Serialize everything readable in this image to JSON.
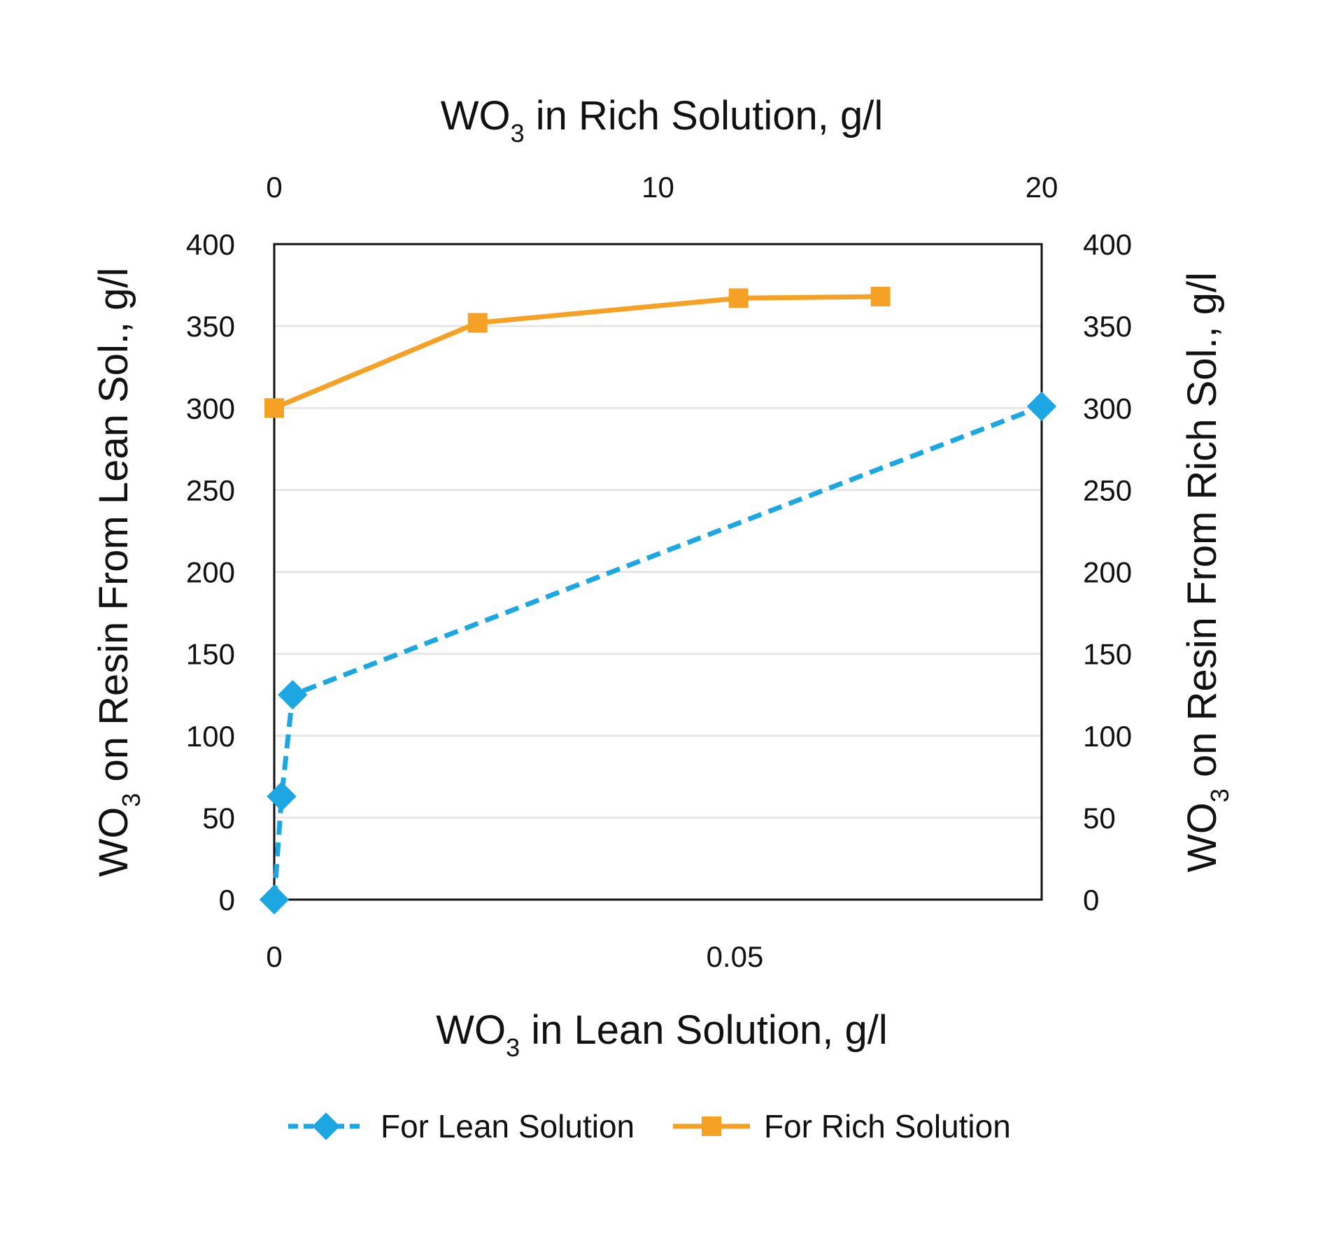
{
  "chart_data": {
    "type": "line",
    "x_bottom": {
      "label_pre": "WO",
      "label_sub": "3",
      "label_post": " in Lean Solution, g/l",
      "range": [
        0,
        0.0833
      ],
      "ticks": [
        0,
        0.05
      ],
      "tick_labels": [
        "0",
        "0.05"
      ]
    },
    "x_top": {
      "label_pre": "WO",
      "label_sub": "3",
      "label_post": " in Rich Solution, g/l",
      "range": [
        0,
        20
      ],
      "ticks": [
        0,
        10,
        20
      ],
      "tick_labels": [
        "0",
        "10",
        "20"
      ]
    },
    "y_left": {
      "label_pre": "WO",
      "label_sub": "3",
      "label_post": " on Resin From Lean Sol., g/l",
      "range": [
        0,
        400
      ],
      "ticks": [
        0,
        50,
        100,
        150,
        200,
        250,
        300,
        350,
        400
      ],
      "tick_labels": [
        "0",
        "50",
        "100",
        "150",
        "200",
        "250",
        "300",
        "350",
        "400"
      ]
    },
    "y_right": {
      "label_pre": "WO",
      "label_sub": "3",
      "label_post": " on Resin From Rich Sol., g/l",
      "range": [
        0,
        400
      ],
      "ticks": [
        0,
        50,
        100,
        150,
        200,
        250,
        300,
        350,
        400
      ],
      "tick_labels": [
        "0",
        "50",
        "100",
        "150",
        "200",
        "250",
        "300",
        "350",
        "400"
      ]
    },
    "grid": true,
    "legend_position": "bottom",
    "series": [
      {
        "name": "For Lean Solution",
        "x_axis": "bottom",
        "y_axis": "left",
        "x": [
          0,
          0.0008,
          0.002,
          0.0833
        ],
        "y": [
          0,
          63,
          125,
          301
        ],
        "color": "#1CA6E2",
        "line_style": "dashed",
        "marker": "diamond"
      },
      {
        "name": "For Rich Solution",
        "x_axis": "top",
        "y_axis": "right",
        "x": [
          0,
          5.3,
          12.1,
          15.8
        ],
        "y": [
          300,
          352,
          367,
          368
        ],
        "color": "#F5A125",
        "line_style": "solid",
        "marker": "square"
      }
    ]
  }
}
